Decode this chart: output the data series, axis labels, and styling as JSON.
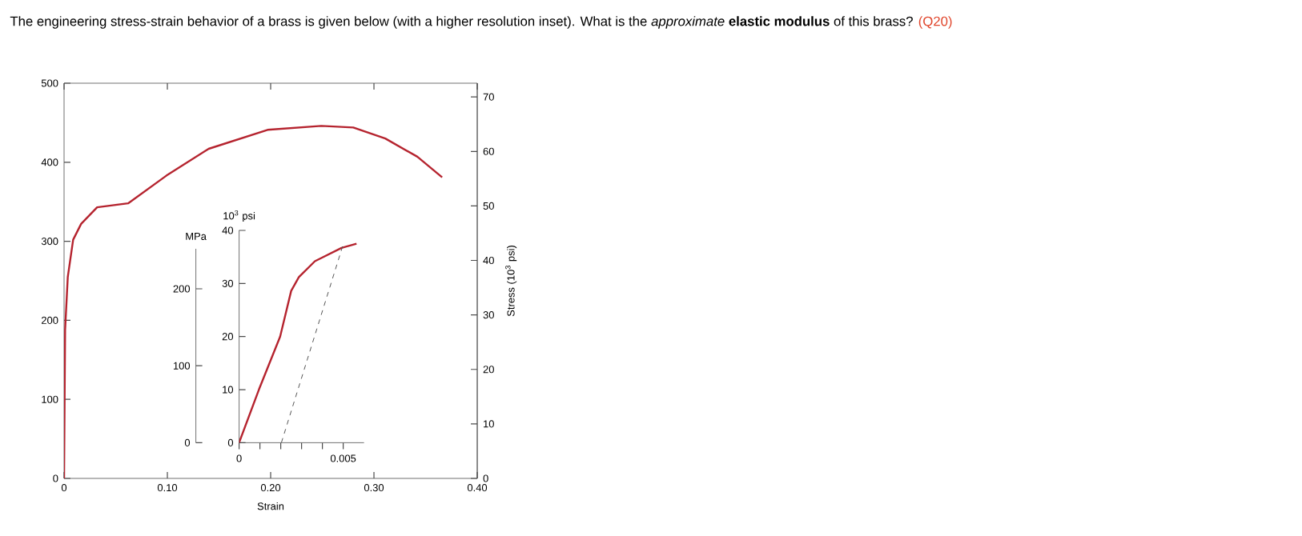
{
  "chart_data": [
    {
      "type": "line",
      "title": "The engineering stress-strain behavior of a brass is given below (with a higher resolution inset). What is the *approximate* **elastic modulus** of this brass?",
      "annotations": [
        "(Q20)"
      ],
      "xlabel": "Strain",
      "y2label": "Stress (10$^{3}$ psi)",
      "xlim": [
        0,
        0.4
      ],
      "xticks": [
        0,
        {
          "value": 0.1,
          "label": "0.10"
        },
        {
          "value": 0.2,
          "label": "0.20"
        },
        {
          "value": 0.3,
          "label": "0.30"
        },
        {
          "value": 0.4,
          "label": "0.40"
        }
      ],
      "ylim": [
        0,
        500
      ],
      "yticks": [
        0,
        100,
        200,
        300,
        400,
        500
      ],
      "y2lim": [
        0,
        72.52
      ],
      "y2ticks": [
        0,
        10,
        20,
        30,
        40,
        50,
        60,
        70
      ],
      "series": [
        {
          "color": "#b5232e",
          "x": [
            0,
            0.001,
            0.0036,
            0.0088,
            0.0165,
            0.032,
            0.062,
            0.099,
            0.14,
            0.197,
            0.249,
            0.28,
            0.311,
            0.342,
            0.366
          ],
          "values": [
            0,
            188,
            255,
            302,
            322,
            343,
            348,
            383,
            417,
            441,
            446,
            444,
            430,
            407,
            381
          ]
        }
      ]
    },
    {
      "type": "line",
      "ylabel": "MPa",
      "y2label": "10$^{3}$ psi",
      "xlim": [
        0,
        0.006
      ],
      "xticks": [
        0,
        {
          "value": 0.001,
          "label": null
        },
        {
          "value": 0.002,
          "label": null
        },
        {
          "value": 0.003,
          "label": null
        },
        {
          "value": 0.004,
          "label": null
        },
        0.005
      ],
      "ylim": [
        0,
        252
      ],
      "yticks": [
        0,
        100,
        200
      ],
      "y2lim": [
        0,
        40
      ],
      "y2ticks": [
        0,
        10,
        20,
        30,
        40
      ],
      "series": [
        {
          "axis": "y2",
          "color": "#b5232e",
          "x": [
            0,
            0.00095,
            0.00197,
            0.0025,
            0.00287,
            0.00364,
            0.00492,
            0.00564
          ],
          "values": [
            0,
            10,
            20,
            28.6,
            31.2,
            34.2,
            36.7,
            37.5
          ]
        },
        {
          "axis": "y2",
          "color": "#555555",
          "line_style": "dashed",
          "x": [
            0.00203,
            0.00497
          ],
          "values": [
            0,
            37
          ]
        }
      ]
    }
  ]
}
